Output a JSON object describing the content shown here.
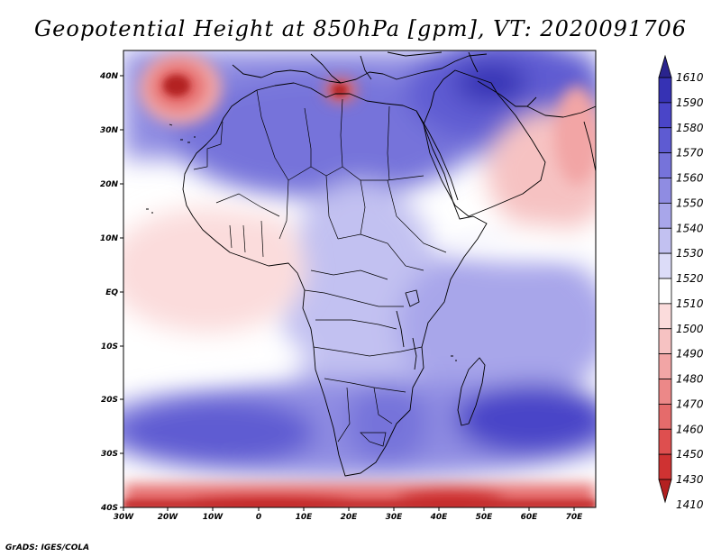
{
  "title": "Geopotential Height at 850hPa [gpm], VT: 2020091706",
  "credit": "GrADS: IGES/COLA",
  "map": {
    "region": "Africa",
    "lat_range": [
      "40S",
      "45N"
    ],
    "lon_range": [
      "30W",
      "75E"
    ],
    "lat_labels": [
      "40N",
      "30N",
      "20N",
      "10N",
      "EQ",
      "10S",
      "20S",
      "30S",
      "40S"
    ],
    "lon_labels": [
      "30W",
      "20W",
      "10W",
      "0",
      "10E",
      "20E",
      "30E",
      "40E",
      "50E",
      "60E",
      "70E"
    ],
    "features": [
      {
        "name": "azores-high-core",
        "value": 1420
      },
      {
        "name": "mediterranean-low",
        "value": 1420
      },
      {
        "name": "southern-low-band",
        "value": 1430
      },
      {
        "name": "south-indian-high",
        "value": 1580
      },
      {
        "name": "south-atlantic-high",
        "value": 1570
      }
    ]
  },
  "colorbar": {
    "levels": [
      "1610",
      "1590",
      "1580",
      "1570",
      "1560",
      "1550",
      "1540",
      "1530",
      "1520",
      "1510",
      "1500",
      "1490",
      "1480",
      "1470",
      "1460",
      "1450",
      "1430",
      "1410"
    ],
    "colors": [
      "#2a248e",
      "#3632b4",
      "#4a45c8",
      "#5e5bd2",
      "#7673da",
      "#8f8ce2",
      "#a8a6ea",
      "#c2c1f1",
      "#dcdcf8",
      "#ffffff",
      "#fbdcdc",
      "#f6c2c2",
      "#f2a5a5",
      "#ec8888",
      "#e56b6b",
      "#de4f4f",
      "#cf3232",
      "#b32020"
    ]
  },
  "colors": {
    "blue_dark": "#3d3bbf",
    "blue_mid": "#7a79dd",
    "blue_light": "#c7c6f2",
    "neutral": "#ffffff",
    "red_light": "#f8d2d2",
    "red_mid": "#eb8d8d",
    "red_dark": "#c12626"
  }
}
